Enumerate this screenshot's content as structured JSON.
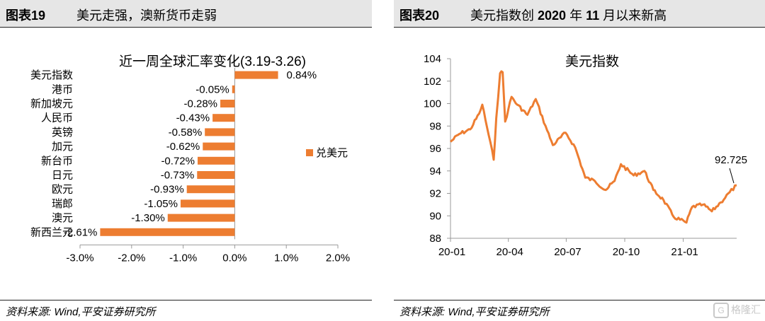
{
  "left": {
    "figure_label": "图表19",
    "header_title": "美元走强，澳新货币走弱",
    "source": "资料来源: Wind,平安证券研究所"
  },
  "right": {
    "figure_label": "图表20",
    "header_title_parts": [
      "美元指数创 ",
      "2020",
      " 年 ",
      "11",
      " 月以来新高"
    ],
    "source": "资料来源: Wind,平安证券研究所"
  },
  "watermark": {
    "icon": "G",
    "text": "格隆汇"
  },
  "colors": {
    "accent": "#ED7D31",
    "axis": "#999999",
    "header_bg": "#e6e6e6"
  },
  "chart_data": [
    {
      "type": "bar",
      "orientation": "horizontal",
      "title": "近一周全球汇率变化(3.19-3.26)",
      "categories": [
        "美元指数",
        "港币",
        "新加坡元",
        "人民币",
        "英镑",
        "加元",
        "新台币",
        "日元",
        "欧元",
        "瑞郎",
        "澳元",
        "新西兰元"
      ],
      "series": [
        {
          "name": "兑美元",
          "values": [
            0.84,
            -0.05,
            -0.28,
            -0.43,
            -0.58,
            -0.62,
            -0.72,
            -0.73,
            -0.93,
            -1.05,
            -1.3,
            -2.61
          ],
          "labels": [
            "0.84%",
            "-0.05%",
            "-0.28%",
            "-0.43%",
            "-0.58%",
            "-0.62%",
            "-0.72%",
            "-0.73%",
            "-0.93%",
            "-1.05%",
            "-1.30%",
            "-2.61%"
          ]
        }
      ],
      "xlim": [
        -3.0,
        2.0
      ],
      "xticks": [
        "-3.0%",
        "-2.0%",
        "-1.0%",
        "0.0%",
        "1.0%",
        "2.0%"
      ],
      "legend": "right"
    },
    {
      "type": "line",
      "title": "美元指数",
      "ylim": [
        88,
        104
      ],
      "yticks": [
        "88",
        "90",
        "92",
        "94",
        "96",
        "98",
        "100",
        "102",
        "104"
      ],
      "xticks": [
        "20-01",
        "20-04",
        "20-07",
        "20-10",
        "21-01"
      ],
      "annotation": "92.725",
      "series": [
        {
          "name": "",
          "x": [
            "2020-01-01",
            "2020-01-15",
            "2020-02-01",
            "2020-02-15",
            "2020-02-20",
            "2020-03-01",
            "2020-03-09",
            "2020-03-13",
            "2020-03-19",
            "2020-03-23",
            "2020-03-27",
            "2020-04-01",
            "2020-04-06",
            "2020-04-15",
            "2020-05-01",
            "2020-05-14",
            "2020-06-01",
            "2020-06-10",
            "2020-06-30",
            "2020-07-15",
            "2020-07-31",
            "2020-08-15",
            "2020-09-01",
            "2020-09-15",
            "2020-09-25",
            "2020-10-15",
            "2020-11-01",
            "2020-11-15",
            "2020-12-01",
            "2020-12-17",
            "2021-01-06",
            "2021-01-15",
            "2021-02-01",
            "2021-02-15",
            "2021-03-01",
            "2021-03-15",
            "2021-03-26"
          ],
          "y": [
            96.6,
            97.3,
            97.7,
            99.1,
            99.9,
            97.2,
            95.0,
            98.7,
            102.7,
            102.8,
            98.4,
            99.5,
            100.6,
            99.9,
            99.0,
            100.4,
            97.6,
            96.3,
            97.4,
            96.1,
            93.4,
            93.1,
            92.3,
            93.1,
            94.6,
            93.6,
            94.0,
            92.3,
            91.4,
            89.9,
            89.4,
            90.8,
            91.0,
            90.4,
            91.2,
            92.1,
            92.725
          ]
        }
      ]
    }
  ]
}
